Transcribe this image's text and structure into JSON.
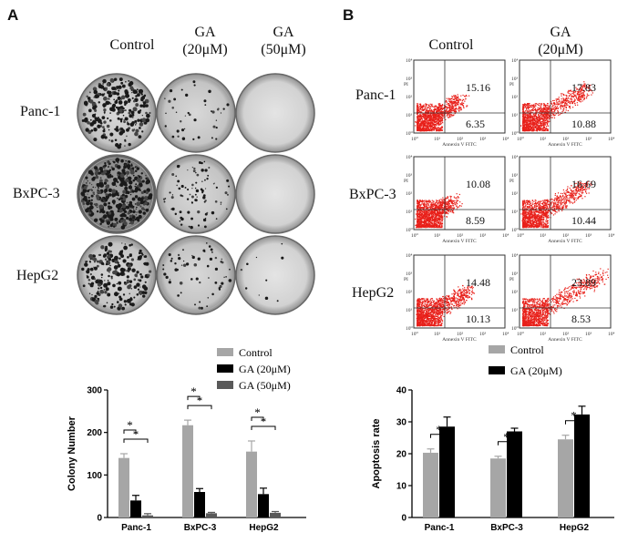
{
  "panelA": {
    "letter": "A",
    "columns": [
      "Control",
      "GA\n(20μM)",
      "GA\n(50μM)"
    ],
    "rows": [
      "Panc-1",
      "BxPC-3",
      "HepG2"
    ]
  },
  "panelB": {
    "letter": "B",
    "columns": [
      "Control",
      "GA\n(20μM)"
    ],
    "rows": [
      "Panc-1",
      "BxPC-3",
      "HepG2"
    ],
    "flow_axis_x": "Annexin V FITC",
    "flow_axis_y": "PI",
    "flow_ticks_x": [
      "10⁰",
      "10¹",
      "10²",
      "10³",
      "10⁴"
    ],
    "flow_ticks_y": [
      "10⁰",
      "10¹",
      "10²",
      "10³",
      "10⁴"
    ],
    "flow_plots": [
      {
        "row": "Panc-1",
        "col": "Control",
        "upper_right": "15.16",
        "lower_right": "6.35"
      },
      {
        "row": "Panc-1",
        "col": "GA (20μM)",
        "upper_right": "17.83",
        "lower_right": "10.88"
      },
      {
        "row": "BxPC-3",
        "col": "Control",
        "upper_right": "10.08",
        "lower_right": "8.59"
      },
      {
        "row": "BxPC-3",
        "col": "GA (20μM)",
        "upper_right": "16.69",
        "lower_right": "10.44"
      },
      {
        "row": "HepG2",
        "col": "Control",
        "upper_right": "14.48",
        "lower_right": "10.13"
      },
      {
        "row": "HepG2",
        "col": "GA (20μM)",
        "upper_right": "23.89",
        "lower_right": "8.53"
      }
    ]
  },
  "colors": {
    "control": "#a6a6a6",
    "ga20": "#000000",
    "ga50": "#595959",
    "flow": "#e8201a"
  },
  "chart_data": [
    {
      "type": "bar",
      "ylabel": "Colony Number",
      "ylim": [
        0,
        300
      ],
      "yticks": [
        0,
        100,
        200,
        300
      ],
      "categories": [
        "Panc-1",
        "BxPC-3",
        "HepG2"
      ],
      "series": [
        {
          "name": "Control",
          "values": [
            140,
            217,
            155
          ],
          "errors": [
            10,
            12,
            25
          ]
        },
        {
          "name": "GA (20μM)",
          "values": [
            40,
            60,
            55
          ],
          "errors": [
            12,
            8,
            14
          ]
        },
        {
          "name": "GA (50μM)",
          "values": [
            5,
            10,
            11
          ],
          "errors": [
            4,
            2,
            3
          ]
        }
      ],
      "significance": "*",
      "legend_position": "top-right"
    },
    {
      "type": "bar",
      "ylabel": "Apoptosis rate",
      "ylim": [
        0,
        40
      ],
      "yticks": [
        0,
        10,
        20,
        30,
        40
      ],
      "categories": [
        "Panc-1",
        "BxPC-3",
        "HepG2"
      ],
      "series": [
        {
          "name": "Control",
          "values": [
            20.3,
            18.5,
            24.5
          ],
          "errors": [
            1.2,
            0.7,
            1.3
          ]
        },
        {
          "name": "GA (20μM)",
          "values": [
            28.5,
            27.0,
            32.3
          ],
          "errors": [
            3.0,
            1.0,
            2.6
          ]
        }
      ],
      "significance": "*",
      "legend_position": "top"
    }
  ]
}
